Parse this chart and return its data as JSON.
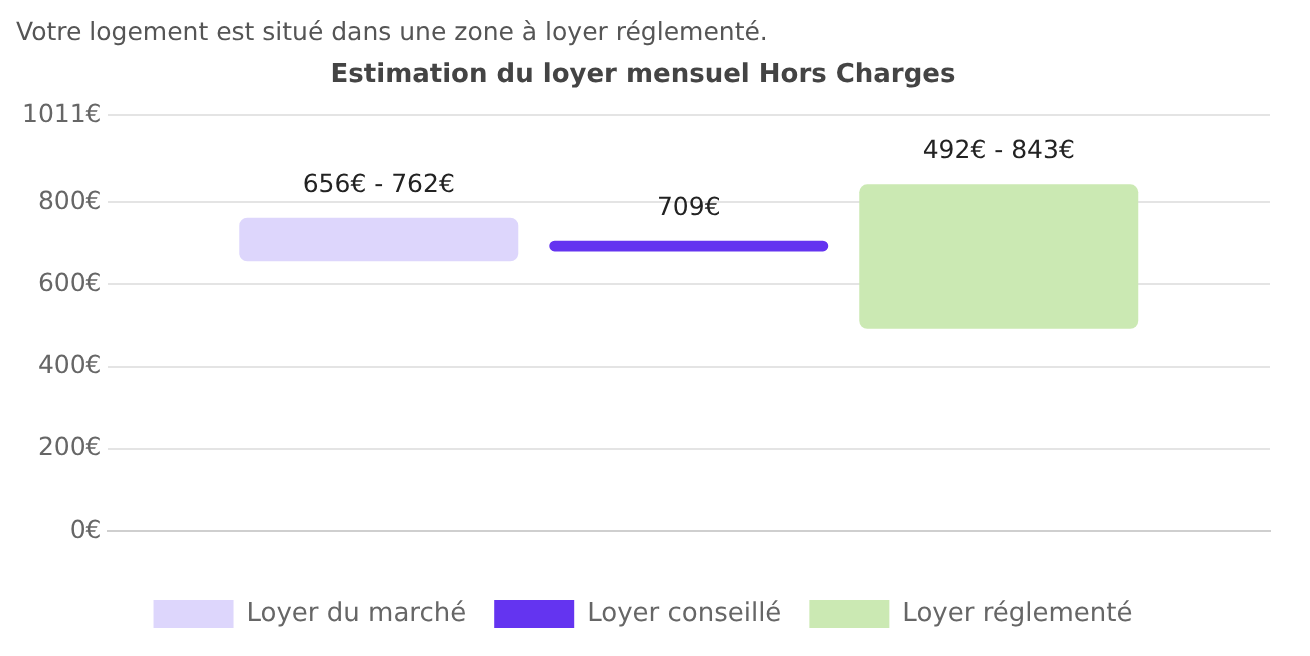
{
  "chart_data": {
    "type": "bar",
    "title": "Estimation du loyer mensuel Hors Charges",
    "subtitle": "Votre logement est situé dans une zone à loyer réglementé.",
    "categories": [
      null
    ],
    "series": [
      {
        "name": "Loyer du marché",
        "color": "#ddd6fc",
        "base": [
          656
        ],
        "values": [
          106
        ]
      },
      {
        "name": "Loyer conseillé",
        "color": "#6434f0",
        "base": [
          680
        ],
        "values": [
          26
        ]
      },
      {
        "name": "Loyer réglementé",
        "color": "#cbe9b3",
        "base": [
          492
        ],
        "values": [
          351
        ]
      }
    ],
    "annotations": [
      "656€ - 762€",
      "709€",
      "492€ - 843€"
    ],
    "ylim": [
      0,
      1011
    ],
    "yticks": [
      {
        "value": 0,
        "label": "0€"
      },
      {
        "value": 200,
        "label": "200€"
      },
      {
        "value": 400,
        "label": "400€"
      },
      {
        "value": 600,
        "label": "600€"
      },
      {
        "value": 800,
        "label": "800€"
      },
      {
        "value": 1011,
        "label": "1011€"
      }
    ],
    "grid": "y",
    "legend": "bottom"
  }
}
